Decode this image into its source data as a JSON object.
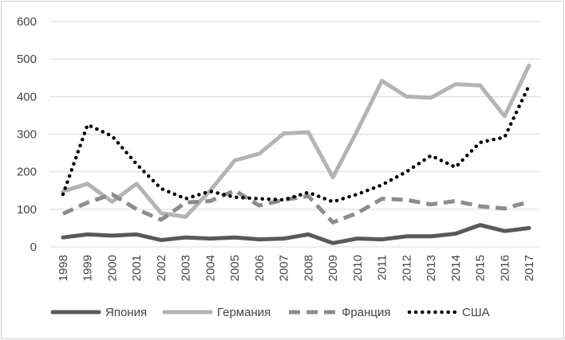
{
  "chart_data": {
    "type": "line",
    "title": "",
    "xlabel": "",
    "ylabel": "",
    "ylim": [
      0,
      600
    ],
    "yticks": [
      "0",
      "100",
      "200",
      "300",
      "400",
      "500",
      "600"
    ],
    "grid": true,
    "legend_position": "bottom",
    "categories": [
      "1998",
      "1999",
      "2000",
      "2001",
      "2002",
      "2003",
      "2004",
      "2005",
      "2006",
      "2007",
      "2008",
      "2009",
      "2010",
      "2011",
      "2012",
      "2013",
      "2014",
      "2015",
      "2016",
      "2017"
    ],
    "series": [
      {
        "name": "Япония",
        "color": "#595959",
        "style": "solid",
        "values": [
          25,
          33,
          30,
          33,
          18,
          25,
          22,
          25,
          20,
          22,
          33,
          10,
          22,
          20,
          28,
          28,
          35,
          58,
          42,
          50
        ]
      },
      {
        "name": "Германия",
        "color": "#b4b4b4",
        "style": "solid",
        "values": [
          148,
          168,
          120,
          168,
          90,
          80,
          150,
          230,
          248,
          302,
          305,
          185,
          310,
          442,
          400,
          397,
          433,
          430,
          348,
          483
        ]
      },
      {
        "name": "Франция",
        "color": "#8c8c8c",
        "style": "dashed",
        "values": [
          88,
          118,
          140,
          100,
          72,
          118,
          122,
          150,
          110,
          125,
          135,
          65,
          90,
          128,
          125,
          113,
          122,
          108,
          102,
          120
        ]
      },
      {
        "name": "США",
        "color": "#000000",
        "style": "dotted",
        "values": [
          140,
          325,
          295,
          220,
          155,
          128,
          148,
          132,
          128,
          125,
          145,
          120,
          140,
          165,
          200,
          243,
          212,
          278,
          292,
          430
        ]
      }
    ]
  }
}
